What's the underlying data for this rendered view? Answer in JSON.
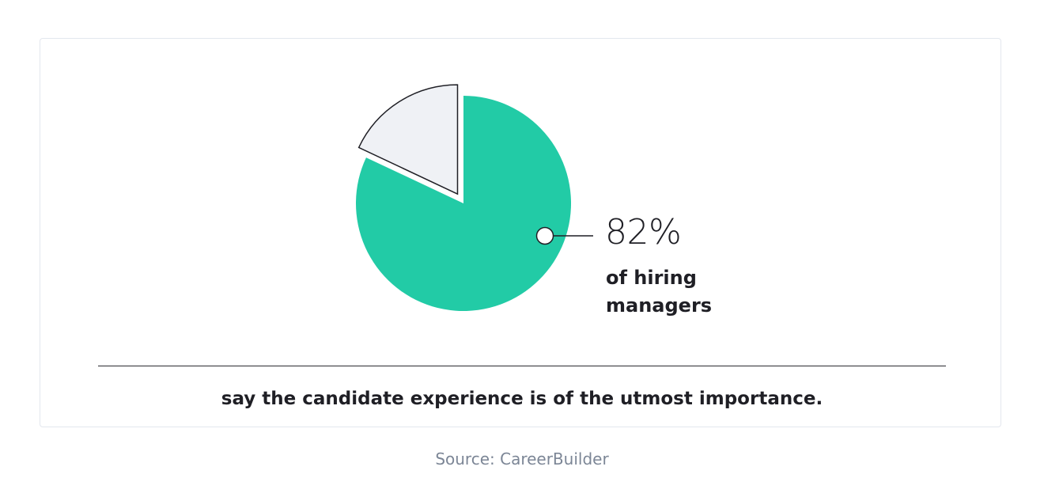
{
  "chart_data": {
    "type": "pie",
    "slices": [
      {
        "label": "of hiring managers",
        "value": 82,
        "color": "#22cba6"
      },
      {
        "label": "",
        "value": 18,
        "color": "#eff1f5"
      }
    ],
    "exploded_slice": 1,
    "annotation": {
      "value_text": "82%",
      "label": "of hiring managers"
    },
    "caption": "say the candidate experience is of the utmost importance.",
    "source": "Source: CareerBuilder"
  }
}
